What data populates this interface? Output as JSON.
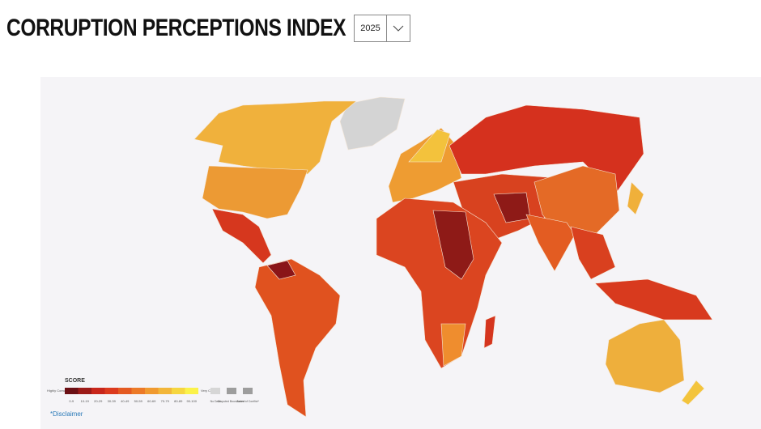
{
  "header": {
    "title": "CORRUPTION PERCEPTIONS INDEX",
    "year": "2025"
  },
  "legend": {
    "title": "SCORE",
    "low": "Highly Corrupt",
    "high": "Very Clean",
    "bins": [
      {
        "label": "0-9",
        "color": "#6b0f14"
      },
      {
        "label": "10-19",
        "color": "#9c1a18"
      },
      {
        "label": "20-29",
        "color": "#c8261b"
      },
      {
        "label": "30-39",
        "color": "#dc3a1e"
      },
      {
        "label": "40-49",
        "color": "#e45a22"
      },
      {
        "label": "50-59",
        "color": "#ec7a28"
      },
      {
        "label": "60-69",
        "color": "#f09a30"
      },
      {
        "label": "70-79",
        "color": "#f2b63a"
      },
      {
        "label": "80-89",
        "color": "#f6d640"
      },
      {
        "label": "90-100",
        "color": "#fbf24a"
      }
    ],
    "other": [
      {
        "label": "No Data",
        "color": "#d6d6d6"
      },
      {
        "label": "Disputed Boundaries*",
        "color": "#9d9d9d"
      },
      {
        "label": "Zones of Conflict*",
        "color": "#9d9d9d"
      }
    ]
  },
  "disclaimer": "*Disclaimer"
}
